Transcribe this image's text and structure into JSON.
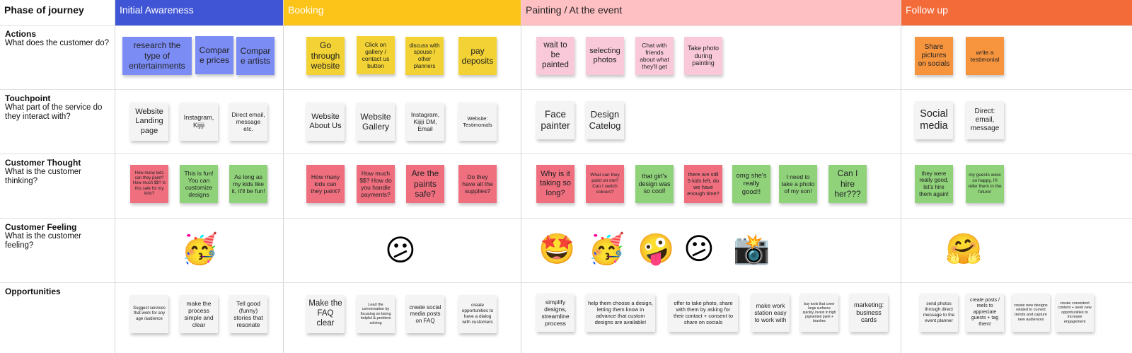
{
  "header": {
    "phase_label": "Phase of journey",
    "phases": [
      {
        "label": "Initial Awareness",
        "color": "#3f55d6"
      },
      {
        "label": "Booking",
        "color": "#fcc419"
      },
      {
        "label": "Painting / At the event",
        "color": "#ffc0c4"
      },
      {
        "label": "Follow up",
        "color": "#f46b3a"
      }
    ]
  },
  "rows": [
    {
      "title": "Actions",
      "subtitle": "What does the customer do?"
    },
    {
      "title": "Touchpoint",
      "subtitle": "What part of the service do they interact with?"
    },
    {
      "title": "Customer Thought",
      "subtitle": "What is the customer thinking?"
    },
    {
      "title": "Customer Feeling",
      "subtitle": "What is the customer feeling?"
    },
    {
      "title": "Opportunities",
      "subtitle": ""
    }
  ],
  "notes": {
    "actions": [
      "research the type of entertainments",
      "Compare prices",
      "Compare artists",
      "Go through website",
      "Click on gallery / contact us button",
      "discuss with spouse / other planners",
      "pay deposits",
      "wait to be painted",
      "selecting photos",
      "Chat with friends about what they'll get",
      "Take photo during painting",
      "Share pictures on socials",
      "write a testimonial"
    ],
    "touchpoints": [
      "Website Landing page",
      "Instagram, Kijiji",
      "Direct email, message etc.",
      "Website About Us",
      "Website Gallery",
      "Instagram, Kijiji DM, Email",
      "Website: Testimonials",
      "Face painter",
      "Design Catelog",
      "Social media",
      "Direct: email, message"
    ],
    "thoughts": [
      "How many kids can they paint? How much $$? Is this safe for my kids?",
      "This is fun! You can customize designs",
      "As long as my kids like it, it'll be fun!",
      "How many kids can they paint?",
      "How much $$? How do you handle payments?",
      "Are the paints safe?",
      "Do they have all the supplies?",
      "Why is it taking so long?",
      "What can they paint on me? Can I switch colours?",
      "that girl's design was so cool!",
      "there are still 5 kids left, do we have enough time?",
      "omg she's really good!!",
      "I need to take a photo of my son!",
      "Can I hire her???",
      "they were really good, let's hire them again!",
      "my guests were so happy, I'll refer them in the future!"
    ],
    "feelings": [
      {
        "icon": "partying-face-icon",
        "glyph": "🥳"
      },
      {
        "icon": "confused-face-icon",
        "glyph": "😕"
      },
      {
        "icon": "star-struck-icon",
        "glyph": "🤩"
      },
      {
        "icon": "partying-face-icon",
        "glyph": "🥳"
      },
      {
        "icon": "zany-face-icon",
        "glyph": "🤪"
      },
      {
        "icon": "confused-face-icon",
        "glyph": "😕"
      },
      {
        "icon": "camera-flash-icon",
        "glyph": "📸"
      },
      {
        "icon": "hugging-face-icon",
        "glyph": "🤗"
      }
    ],
    "opportunities": [
      "Suggest services that work for any age /audience",
      "make the process simple and clear",
      "Tell good (funny) stories that resonate",
      "Make the FAQ clear",
      "Lead the conversation by focusing on being helpful & problem solving",
      "create social media posts on FAQ",
      "create opportunities to have a dialog with customers",
      "simplify designs, streamline process",
      "help them choose a design, letting them know in advance that custom designs are available!",
      "offer to take photo, share with them by asking for their contact + consent to share on socials",
      "make work station easy to work with",
      "buy tools that cover large surfaces quickly, invest in high pigmented paint + brushes",
      "marketing: business cards",
      "send photos through direct message to the event planner",
      "create posts / reels to appreciate guests + tag them!",
      "create new designs related to current trends and capture new audiences",
      "create consistent content + seek new opportunities to increase engagement"
    ]
  },
  "colors": {
    "blue": "#7b8cf5",
    "yellow": "#f7d23e",
    "pink": "#f9c9d9",
    "orange": "#f7953f",
    "white": "#f4f4f4",
    "red": "#ef6f7f",
    "green": "#8fd27a"
  }
}
